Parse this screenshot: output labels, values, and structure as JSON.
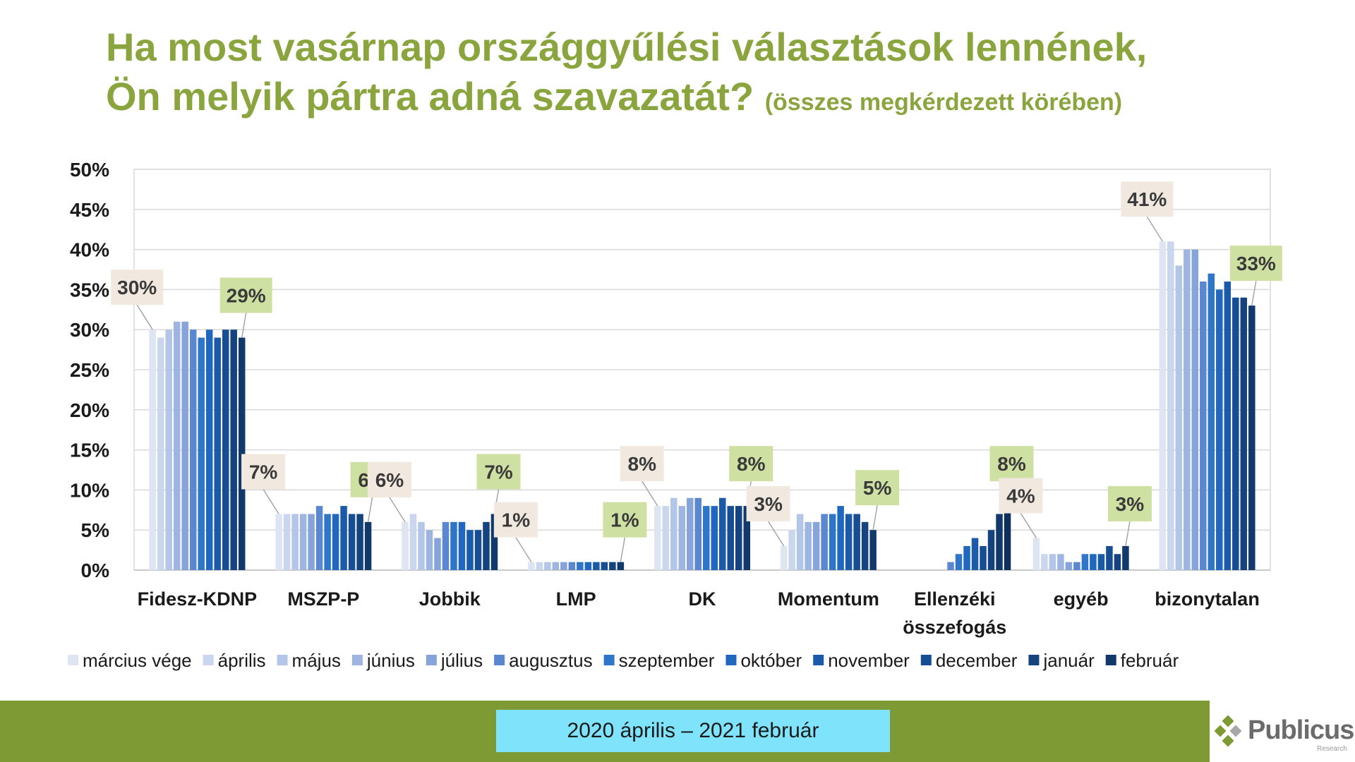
{
  "title": {
    "line1": "Ha most vasárnap országgyűlési választások lennének,",
    "line2": "Ön melyik pártra adná szavazatát?",
    "subtitle": "(összes megkérdezett körében)"
  },
  "footer": {
    "period": "2020 április – 2021 február",
    "brand": "Publicus",
    "brand_tagline": "Research",
    "band_color": "#7e9a35",
    "label_color": "#7fe3fb"
  },
  "chart_data": {
    "type": "bar",
    "ylim": [
      0,
      50
    ],
    "yticks": [
      "0%",
      "5%",
      "10%",
      "15%",
      "20%",
      "25%",
      "30%",
      "35%",
      "40%",
      "45%",
      "50%"
    ],
    "grid": true,
    "legend_position": "bottom",
    "categories": [
      "Fidesz-KDNP",
      "MSZP-P",
      "Jobbik",
      "LMP",
      "DK",
      "Momentum",
      "Ellenzéki összefogás",
      "egyéb",
      "bizonytalan"
    ],
    "series": [
      {
        "name": "március vége",
        "color": "#dde5f3",
        "values": [
          30,
          7,
          6,
          1,
          8,
          3,
          null,
          4,
          41
        ]
      },
      {
        "name": "április",
        "color": "#c9d6ee",
        "values": [
          29,
          7,
          7,
          1,
          8,
          5,
          null,
          2,
          41
        ]
      },
      {
        "name": "május",
        "color": "#b4c6e7",
        "values": [
          30,
          7,
          6,
          1,
          9,
          7,
          null,
          2,
          38
        ]
      },
      {
        "name": "június",
        "color": "#9db5e0",
        "values": [
          31,
          7,
          5,
          1,
          8,
          6,
          null,
          2,
          40
        ]
      },
      {
        "name": "július",
        "color": "#86a4da",
        "values": [
          31,
          7,
          4,
          1,
          9,
          6,
          null,
          1,
          40
        ]
      },
      {
        "name": "augusztus",
        "color": "#5b86d0",
        "values": [
          30,
          8,
          6,
          1,
          9,
          7,
          1,
          1,
          36
        ]
      },
      {
        "name": "szeptember",
        "color": "#2f75c8",
        "values": [
          29,
          7,
          6,
          1,
          8,
          7,
          2,
          2,
          37
        ]
      },
      {
        "name": "október",
        "color": "#1f67bf",
        "values": [
          30,
          7,
          6,
          1,
          8,
          8,
          3,
          2,
          35
        ]
      },
      {
        "name": "november",
        "color": "#1a5aa8",
        "values": [
          29,
          8,
          5,
          1,
          9,
          7,
          4,
          2,
          36
        ]
      },
      {
        "name": "december",
        "color": "#174e93",
        "values": [
          30,
          7,
          5,
          1,
          8,
          7,
          3,
          3,
          34
        ]
      },
      {
        "name": "január",
        "color": "#14437f",
        "values": [
          30,
          7,
          6,
          1,
          8,
          6,
          5,
          2,
          34
        ]
      },
      {
        "name": "február",
        "color": "#11396b",
        "values": [
          29,
          6,
          7,
          1,
          8,
          5,
          7,
          3,
          33
        ]
      }
    ],
    "extra_bar": {
      "category": "Ellenzéki összefogás",
      "value": 8,
      "color": "#0d2f5a"
    },
    "callouts": [
      {
        "text": "30%",
        "style": "first"
      },
      {
        "text": "29%",
        "style": "last"
      },
      {
        "text": "7%",
        "style": "first"
      },
      {
        "text": "6%",
        "style": "last"
      },
      {
        "text": "6%",
        "style": "first"
      },
      {
        "text": "7%",
        "style": "last"
      },
      {
        "text": "1%",
        "style": "first"
      },
      {
        "text": "1%",
        "style": "last"
      },
      {
        "text": "8%",
        "style": "first"
      },
      {
        "text": "8%",
        "style": "last"
      },
      {
        "text": "3%",
        "style": "first"
      },
      {
        "text": "5%",
        "style": "last"
      },
      {
        "text": "8%",
        "style": "last"
      },
      {
        "text": "4%",
        "style": "first"
      },
      {
        "text": "3%",
        "style": "last"
      },
      {
        "text": "41%",
        "style": "first"
      },
      {
        "text": "33%",
        "style": "last"
      }
    ],
    "callout_colors": {
      "first": "#f1e9df",
      "last": "#cfe0a3"
    }
  }
}
